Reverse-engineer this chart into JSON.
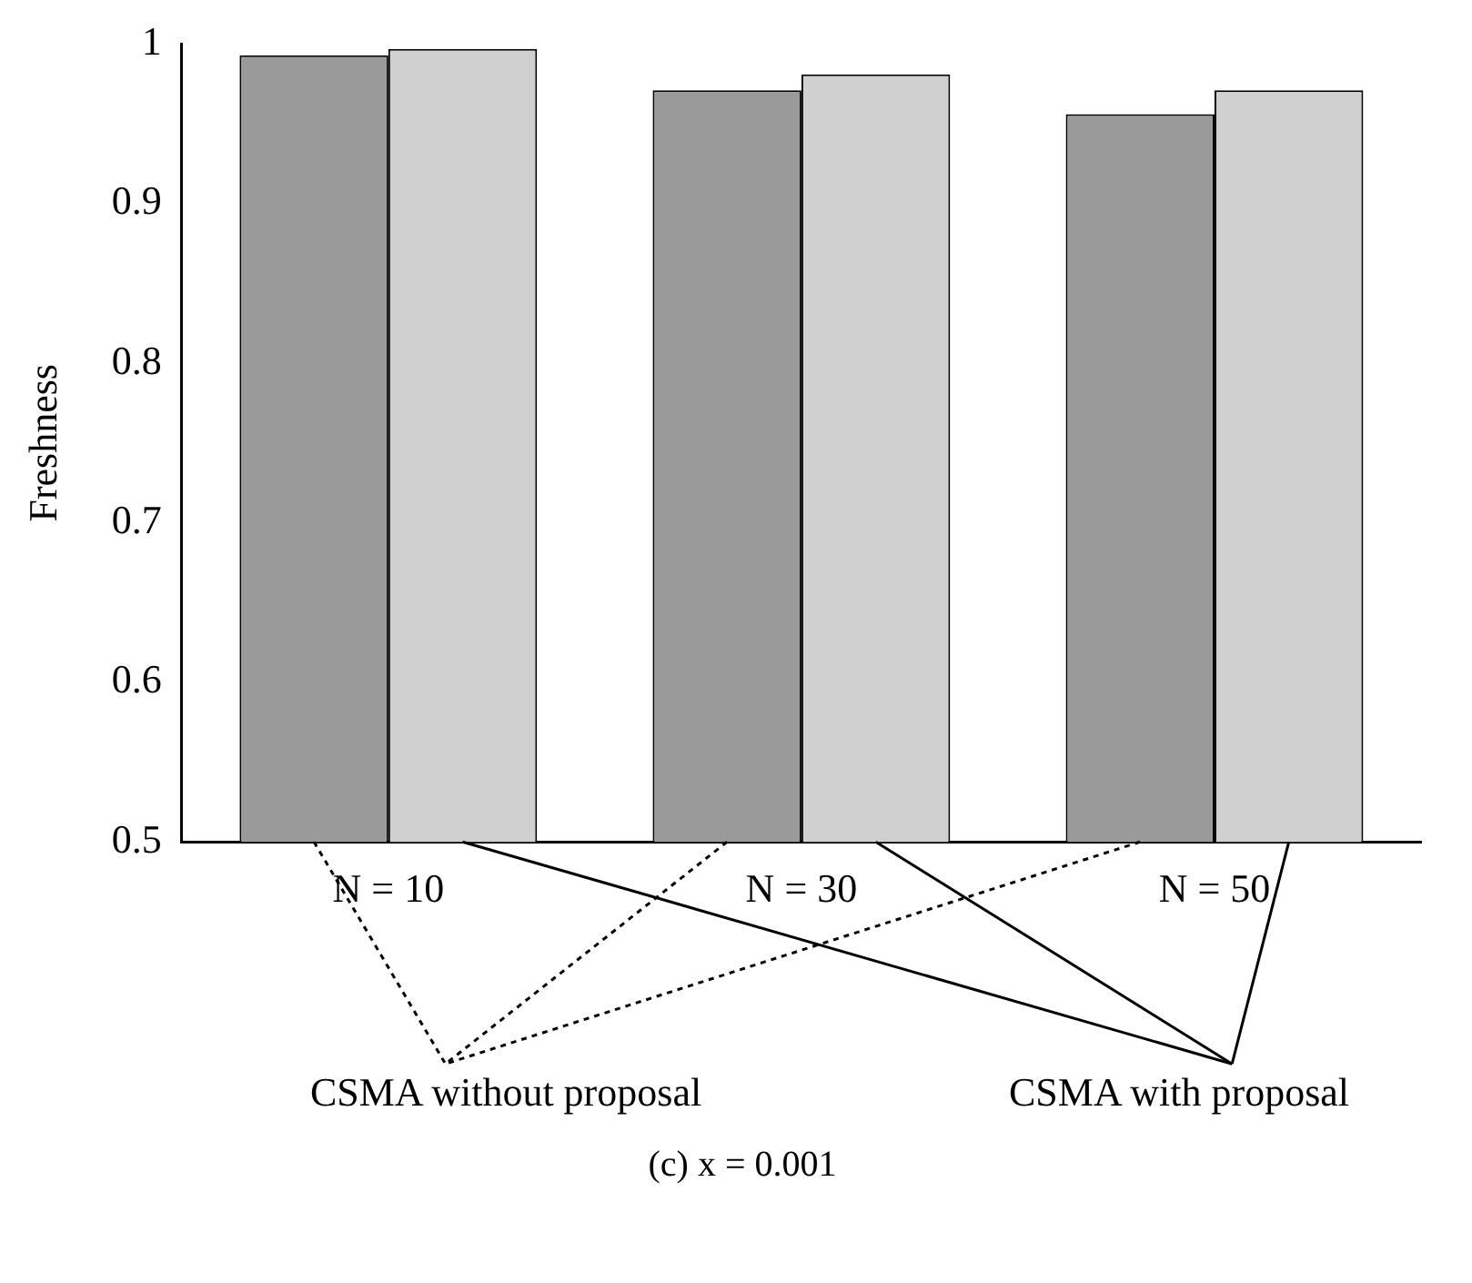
{
  "chart_data": {
    "type": "bar",
    "categories": [
      "N = 10",
      "N = 30",
      "N = 50"
    ],
    "series": [
      {
        "name": "CSMA without proposal",
        "color": "#9a9a9a",
        "values": [
          0.993,
          0.971,
          0.956
        ]
      },
      {
        "name": "CSMA with proposal",
        "color": "#d0d0d0",
        "values": [
          0.997,
          0.981,
          0.971
        ]
      }
    ],
    "ylabel": "Freshness",
    "ylim": [
      0.5,
      1
    ],
    "yticks": [
      0.5,
      0.6,
      0.7,
      0.8,
      0.9,
      1
    ],
    "grid": false,
    "legend": "bottom",
    "annotations": [
      "(c) x = 0.001"
    ]
  }
}
